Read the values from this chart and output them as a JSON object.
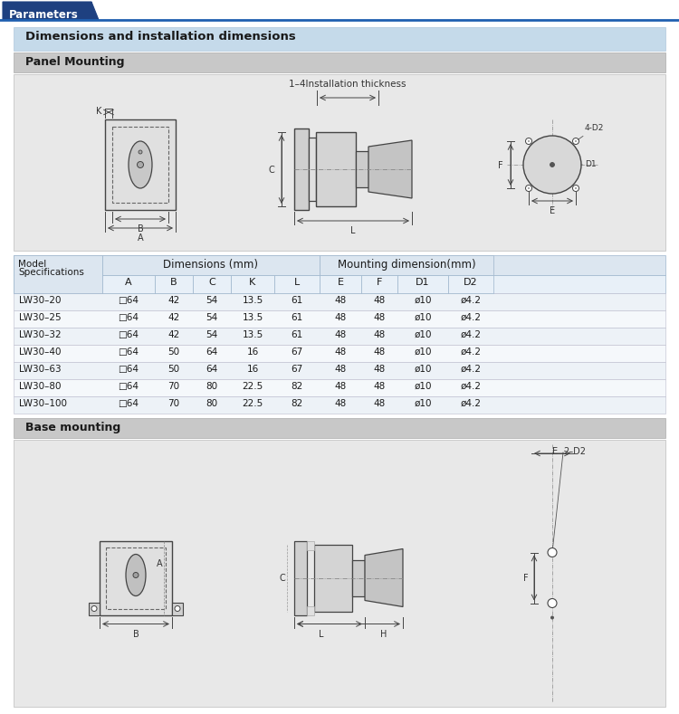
{
  "title": "Parameters",
  "section1": "Dimensions and installation dimensions",
  "section2": "Panel Mounting",
  "section3": "Base mounting",
  "install_note": "1–4Installation thickness",
  "table_headers_dim": [
    "A",
    "B",
    "C",
    "K",
    "L"
  ],
  "table_headers_mount": [
    "E",
    "F",
    "D1",
    "D2"
  ],
  "col_header1": "Dimensions (mm)",
  "col_header2": "Mounting dimension(mm)",
  "models": [
    "LW30–20",
    "LW30–25",
    "LW30–32",
    "LW30–40",
    "LW30–63",
    "LW30–80",
    "LW30–100"
  ],
  "dim_data": [
    [
      "□64",
      "42",
      "54",
      "13.5",
      "61"
    ],
    [
      "□64",
      "42",
      "54",
      "13.5",
      "61"
    ],
    [
      "□64",
      "42",
      "54",
      "13.5",
      "61"
    ],
    [
      "□64",
      "50",
      "64",
      "16",
      "67"
    ],
    [
      "□64",
      "50",
      "64",
      "16",
      "67"
    ],
    [
      "□64",
      "70",
      "80",
      "22.5",
      "82"
    ],
    [
      "□64",
      "70",
      "80",
      "22.5",
      "82"
    ]
  ],
  "mount_data": [
    [
      "48",
      "48",
      "ø10",
      "ø4.2"
    ],
    [
      "48",
      "48",
      "ø10",
      "ø4.2"
    ],
    [
      "48",
      "48",
      "ø10",
      "ø4.2"
    ],
    [
      "48",
      "48",
      "ø10",
      "ø4.2"
    ],
    [
      "48",
      "48",
      "ø10",
      "ø4.2"
    ],
    [
      "48",
      "48",
      "ø10",
      "ø4.2"
    ],
    [
      "48",
      "48",
      "ø10",
      "ø4.2"
    ]
  ],
  "section_bg": "#c5daea",
  "panel_mount_bg": "#c8c8c8",
  "table_header_bg1": "#dce6f0",
  "table_header_bg2": "#e8f0f8",
  "table_row_alt": "#edf2f7",
  "table_row_norm": "#f5f8fb",
  "title_tab_color": "#1e4080",
  "title_line_color": "#2060b0",
  "diag_bg": "#e8e8e8",
  "line_color": "#444444",
  "text_dark": "#1a1a1a",
  "text_gray": "#333333",
  "outer_bg": "#f5f5f5"
}
